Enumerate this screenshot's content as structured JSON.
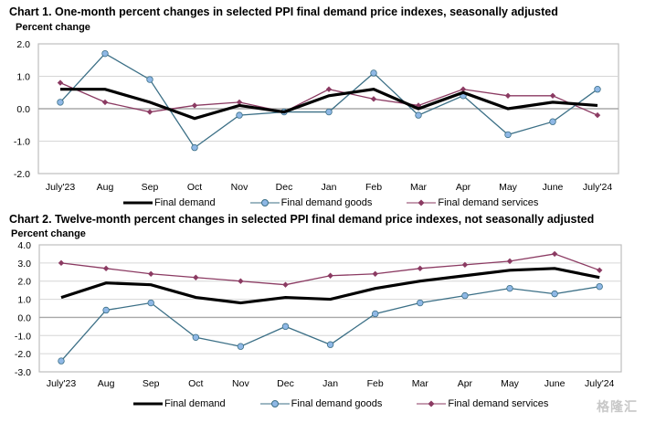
{
  "chart_data": [
    {
      "type": "line",
      "title": "Chart 1. One-month percent changes in selected PPI final demand price indexes, seasonally adjusted",
      "ylabel": "Percent change",
      "xlabel": "",
      "ylim": [
        -2.0,
        2.0
      ],
      "yticks": [
        "2.0",
        "1.0",
        "0.0",
        "-1.0",
        "-2.0"
      ],
      "ytick_values": [
        2.0,
        1.0,
        0.0,
        -1.0,
        -2.0
      ],
      "grid": true,
      "legend_position": "bottom",
      "categories": [
        "July'23",
        "Aug",
        "Sep",
        "Oct",
        "Nov",
        "Dec",
        "Jan",
        "Feb",
        "Mar",
        "Apr",
        "May",
        "June",
        "July'24"
      ],
      "series": [
        {
          "name": "Final demand",
          "color": "#000000",
          "marker": "none",
          "values": [
            0.6,
            0.6,
            0.2,
            -0.3,
            0.1,
            -0.1,
            0.4,
            0.6,
            0.0,
            0.5,
            0.0,
            0.2,
            0.1
          ]
        },
        {
          "name": "Final demand goods",
          "color": "#3b6f86",
          "marker": "circle",
          "marker_fill": "#8fb8e6",
          "values": [
            0.2,
            1.7,
            0.9,
            -1.2,
            -0.2,
            -0.1,
            -0.1,
            1.1,
            -0.2,
            0.4,
            -0.8,
            -0.4,
            0.6
          ]
        },
        {
          "name": "Final demand services",
          "color": "#8b3a62",
          "marker": "diamond",
          "marker_fill": "#8b3a62",
          "values": [
            0.8,
            0.2,
            -0.1,
            0.1,
            0.2,
            -0.1,
            0.6,
            0.3,
            0.1,
            0.6,
            0.4,
            0.4,
            -0.2
          ]
        }
      ]
    },
    {
      "type": "line",
      "title": "Chart 2. Twelve-month percent changes in selected PPI final demand price indexes, not seasonally adjusted",
      "ylabel": "Percent change",
      "xlabel": "",
      "ylim": [
        -3.0,
        4.0
      ],
      "yticks": [
        "4.0",
        "3.0",
        "2.0",
        "1.0",
        "0.0",
        "-1.0",
        "-2.0",
        "-3.0"
      ],
      "ytick_values": [
        4.0,
        3.0,
        2.0,
        1.0,
        0.0,
        -1.0,
        -2.0,
        -3.0
      ],
      "grid": true,
      "legend_position": "bottom",
      "categories": [
        "July'23",
        "Aug",
        "Sep",
        "Oct",
        "Nov",
        "Dec",
        "Jan",
        "Feb",
        "Mar",
        "Apr",
        "May",
        "June",
        "July'24"
      ],
      "series": [
        {
          "name": "Final demand",
          "color": "#000000",
          "marker": "none",
          "values": [
            1.1,
            1.9,
            1.8,
            1.1,
            0.8,
            1.1,
            1.0,
            1.6,
            2.0,
            2.3,
            2.6,
            2.7,
            2.2
          ]
        },
        {
          "name": "Final demand goods",
          "color": "#3b6f86",
          "marker": "circle",
          "marker_fill": "#8fb8e6",
          "values": [
            -2.4,
            0.4,
            0.8,
            -1.1,
            -1.6,
            -0.5,
            -1.5,
            0.2,
            0.8,
            1.2,
            1.6,
            1.3,
            1.7
          ]
        },
        {
          "name": "Final demand services",
          "color": "#8b3a62",
          "marker": "diamond",
          "marker_fill": "#8b3a62",
          "values": [
            3.0,
            2.7,
            2.4,
            2.2,
            2.0,
            1.8,
            2.3,
            2.4,
            2.7,
            2.9,
            3.1,
            3.5,
            2.6
          ]
        }
      ]
    }
  ],
  "watermark": "格隆汇"
}
